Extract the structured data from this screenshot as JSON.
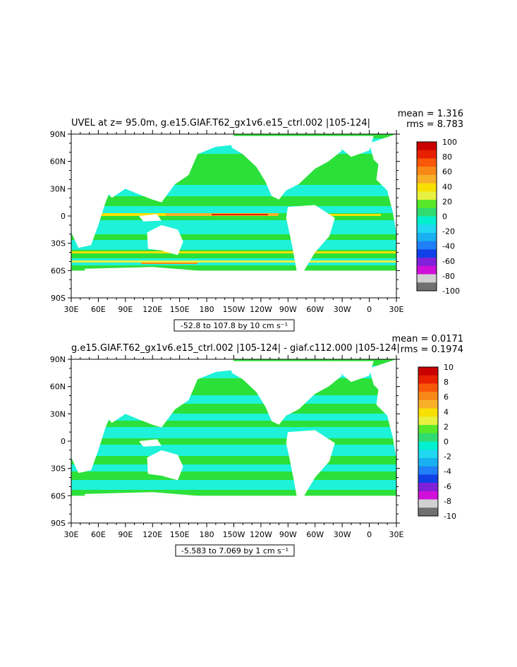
{
  "panels": [
    {
      "title": "UVEL at z=  95.0m, g.e15.GIAF.T62_gx1v6.e15_ctrl.002 |105-124|",
      "stats": {
        "mean": "mean = 1.316",
        "rms": "rms = 8.783"
      },
      "range_label": "-52.8 to 107.8 by 10 cm s⁻¹",
      "colorbar": {
        "labels": [
          "100",
          "80",
          "60",
          "40",
          "20",
          "0",
          "-20",
          "-40",
          "-60",
          "-80",
          "-100"
        ],
        "colors": [
          "#c80000",
          "#e82000",
          "#f85808",
          "#f88818",
          "#f8b028",
          "#f8e000",
          "#e8f040",
          "#58e828",
          "#30dc70",
          "#00f0d0",
          "#20d8f0",
          "#18b0f0",
          "#2080f8",
          "#1040e8",
          "#8020d8",
          "#d010d8",
          "#d0d0d0",
          "#707070"
        ]
      }
    },
    {
      "title": "g.e15.GIAF.T62_gx1v6.e15_ctrl.002 |105-124| - giaf.c112.000 |105-124|",
      "stats": {
        "mean": "mean = 0.0171",
        "rms": "rms = 0.1974"
      },
      "range_label": "-5.583 to 7.069 by 1 cm s⁻¹",
      "colorbar": {
        "labels": [
          "10",
          "8",
          "6",
          "4",
          "2",
          "0",
          "-2",
          "-4",
          "-6",
          "-8",
          "-10"
        ],
        "colors": [
          "#c80000",
          "#e82000",
          "#f85808",
          "#f88818",
          "#f8b028",
          "#f8e000",
          "#e8f040",
          "#58e828",
          "#30dc70",
          "#00f0d0",
          "#20d8f0",
          "#18b0f0",
          "#2080f8",
          "#1040e8",
          "#8020d8",
          "#d010d8",
          "#d0d0d0",
          "#707070"
        ]
      }
    }
  ],
  "axes": {
    "lat_labels": [
      "90N",
      "60N",
      "30N",
      "0",
      "30S",
      "60S",
      "90S"
    ],
    "lon_labels": [
      "30E",
      "60E",
      "90E",
      "120E",
      "150E",
      "180",
      "150W",
      "120W",
      "90W",
      "60W",
      "30W",
      "0",
      "30E"
    ]
  },
  "colors": {
    "ocean_background": "#2ce03a",
    "ocean_band": "#1ef2d8",
    "land": "#ffffff",
    "jet_warm": "#f8e000",
    "jet_hot": "#e82000"
  }
}
